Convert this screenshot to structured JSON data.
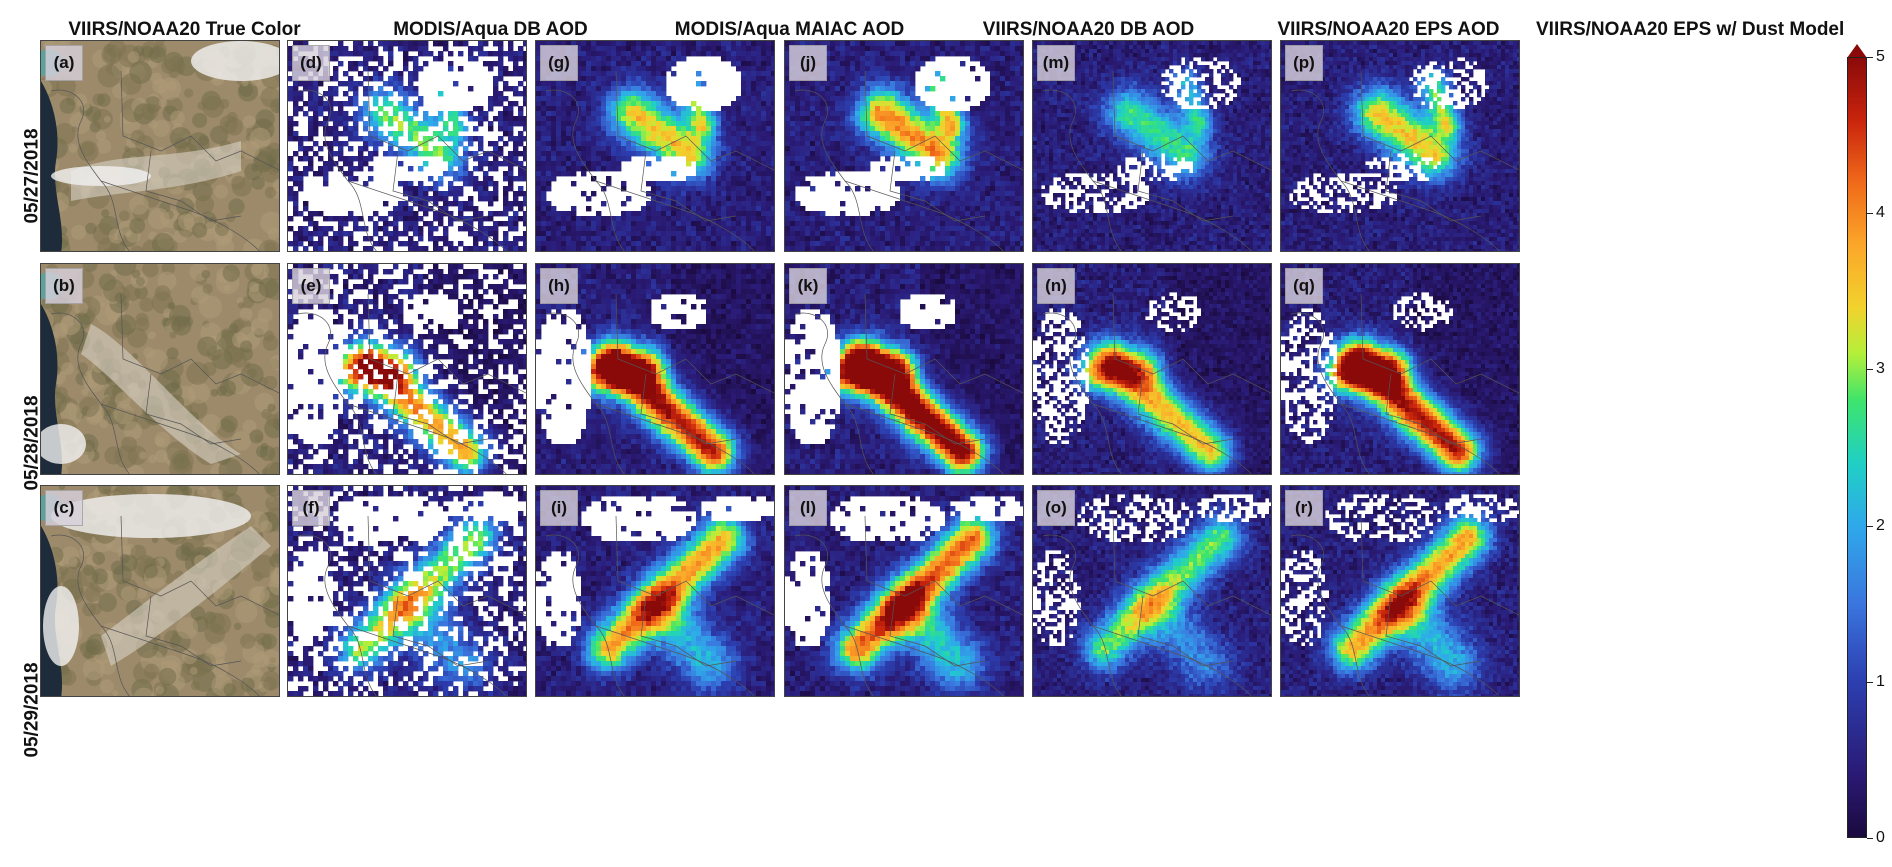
{
  "columns": [
    {
      "title": "VIIRS/NOAA20 True Color",
      "panels": [
        "(a)",
        "(b)",
        "(c)"
      ],
      "kind": "truecolor"
    },
    {
      "title": "MODIS/Aqua DB AOD",
      "panels": [
        "(d)",
        "(e)",
        "(f)"
      ],
      "kind": "aod"
    },
    {
      "title": "MODIS/Aqua MAIAC AOD",
      "panels": [
        "(g)",
        "(h)",
        "(i)"
      ],
      "kind": "aod"
    },
    {
      "title": "VIIRS/NOAA20 DB AOD",
      "panels": [
        "(j)",
        "(k)",
        "(l)"
      ],
      "kind": "aod"
    },
    {
      "title": "VIIRS/NOAA20 EPS AOD",
      "panels": [
        "(m)",
        "(n)",
        "(o)"
      ],
      "kind": "aod"
    },
    {
      "title": "VIIRS/NOAA20 EPS w/ Dust Model",
      "panels": [
        "(p)",
        "(q)",
        "(r)"
      ],
      "kind": "aod"
    }
  ],
  "rows": [
    "05/27/2018",
    "05/28/2018",
    "05/29/2018"
  ],
  "colorbar": {
    "ticks": [
      "0",
      "1",
      "2",
      "3",
      "4",
      "5"
    ],
    "min": 0,
    "max": 5,
    "extend": "max",
    "colormap": "turbo"
  }
}
